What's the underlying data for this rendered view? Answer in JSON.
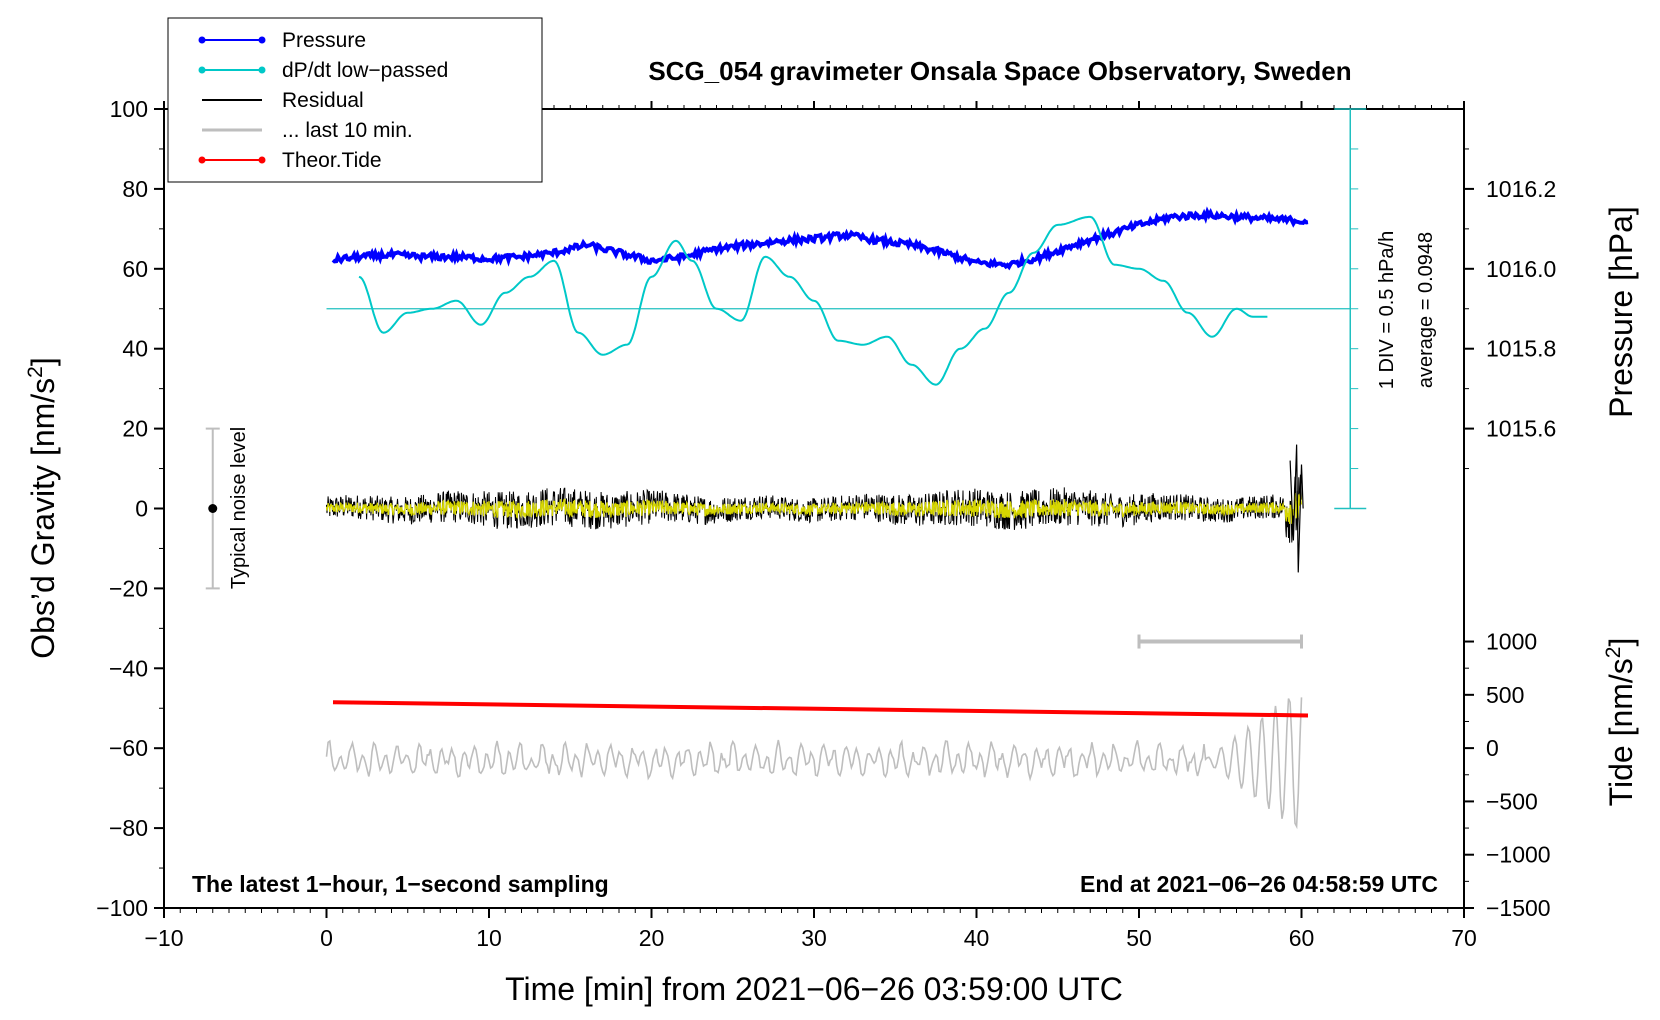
{
  "chart_data": {
    "type": "line",
    "title": "SCG_054 gravimeter Onsala Space Observatory, Sweden",
    "xlabel": "Time [min] from 2021−06−26 03:59:00 UTC",
    "ylabel_left": "Obs’d Gravity [nm/s",
    "ylabel_left_sup": "2",
    "ylabel_left_end": "]",
    "ylabel_pressure": "Pressure [hPa]",
    "ylabel_tide": "Tide [nm/s",
    "ylabel_tide_sup": "2",
    "ylabel_tide_end": "]",
    "xlim": [
      -10,
      70
    ],
    "ylim_left": [
      -100,
      100
    ],
    "x_ticks": [
      "−10",
      "0",
      "10",
      "20",
      "30",
      "40",
      "50",
      "60",
      "70"
    ],
    "x_tick_values": [
      -10,
      0,
      10,
      20,
      30,
      40,
      50,
      60,
      70
    ],
    "y_left_ticks": [
      "100",
      "80",
      "60",
      "40",
      "20",
      "0",
      "−20",
      "−40",
      "−60",
      "−80",
      "−100"
    ],
    "y_left_tick_values": [
      100,
      80,
      60,
      40,
      20,
      0,
      -20,
      -40,
      -60,
      -80,
      -100
    ],
    "pressure_ticks": [
      "1016.2",
      "1016.0",
      "1015.8",
      "1015.6"
    ],
    "pressure_tick_values": [
      1016.2,
      1016.0,
      1015.8,
      1015.6
    ],
    "pressure_axis_map": {
      "hpa": [
        1015.6,
        1016.2
      ],
      "gravity_units": [
        20,
        80
      ]
    },
    "tide_ticks": [
      "1000",
      "500",
      "0",
      "−500",
      "−1000",
      "−1500"
    ],
    "tide_tick_values": [
      1000,
      500,
      0,
      -500,
      -1000,
      -1500
    ],
    "tide_axis_map": {
      "nm_s2": [
        -1500,
        1000
      ],
      "gravity_units": [
        -100,
        -33.3
      ]
    },
    "legend_position": "top-left",
    "legend": [
      {
        "label": "Pressure",
        "color": "#0000ff",
        "marker": true
      },
      {
        "label": "dP/dt low−passed",
        "color": "#00c8c8",
        "marker": true
      },
      {
        "label": "Residual",
        "color": "#000000",
        "marker": false
      },
      {
        "label": "... last 10 min.",
        "color": "#bebebe",
        "marker": false
      },
      {
        "label": "Theor.Tide",
        "color": "#ff0000",
        "marker": true
      }
    ],
    "annotations": {
      "bottom_left": "The latest 1−hour, 1−second sampling",
      "bottom_right": "End at 2021−06−26 04:58:59 UTC",
      "noise": "Typical noise level",
      "div": "1 DIV = 0.5 hPa/h",
      "average": "average = 0.0948"
    },
    "noise_bar": {
      "x": -7,
      "center": 0,
      "range": [
        -20,
        20
      ]
    },
    "dpdt_ruler": {
      "x": 63,
      "range": [
        0,
        100
      ],
      "baseline": 50
    },
    "last10_bar": {
      "x_range": [
        50,
        60
      ],
      "y": -33.3
    },
    "series": [
      {
        "name": "Pressure",
        "color": "#0000ff",
        "x": [
          0,
          2,
          4,
          6,
          8,
          10,
          12,
          14,
          16,
          18,
          20,
          22,
          24,
          26,
          28,
          30,
          32,
          34,
          36,
          38,
          40,
          42,
          44,
          46,
          48,
          50,
          52,
          54,
          56,
          58,
          60
        ],
        "y": [
          62,
          63,
          63.5,
          63,
          63,
          62.5,
          63,
          64,
          66,
          64,
          62,
          63,
          65,
          66,
          67,
          67.5,
          68.5,
          67,
          66,
          64,
          61.5,
          61,
          63,
          66,
          68.5,
          71,
          73,
          73.5,
          73,
          72.5,
          72
        ]
      },
      {
        "name": "dP/dt low-passed",
        "color": "#00c8c8",
        "x": [
          2,
          3.5,
          5,
          6.5,
          8,
          9.5,
          11,
          12.5,
          14,
          15.5,
          17,
          18.5,
          20,
          21.5,
          22.5,
          24,
          25.5,
          27,
          28.5,
          30,
          31.5,
          33,
          34.5,
          36,
          37.5,
          39,
          40.5,
          42,
          43.5,
          45,
          47,
          48.5,
          50,
          51.5,
          53,
          54.5,
          56,
          57,
          58
        ],
        "y": [
          58,
          44,
          49,
          50,
          52,
          46,
          54,
          58,
          62,
          44,
          38.5,
          41,
          58,
          67,
          62,
          50,
          47,
          63,
          58,
          52,
          42,
          41,
          43,
          36,
          31,
          40,
          45,
          54,
          64,
          71,
          73,
          61,
          60,
          57,
          49,
          43,
          50,
          48,
          48
        ]
      },
      {
        "name": "Theor.Tide",
        "color": "#ff0000",
        "x": [
          0.4,
          60.4
        ],
        "y": [
          -48.5,
          -51.8
        ]
      }
    ]
  }
}
